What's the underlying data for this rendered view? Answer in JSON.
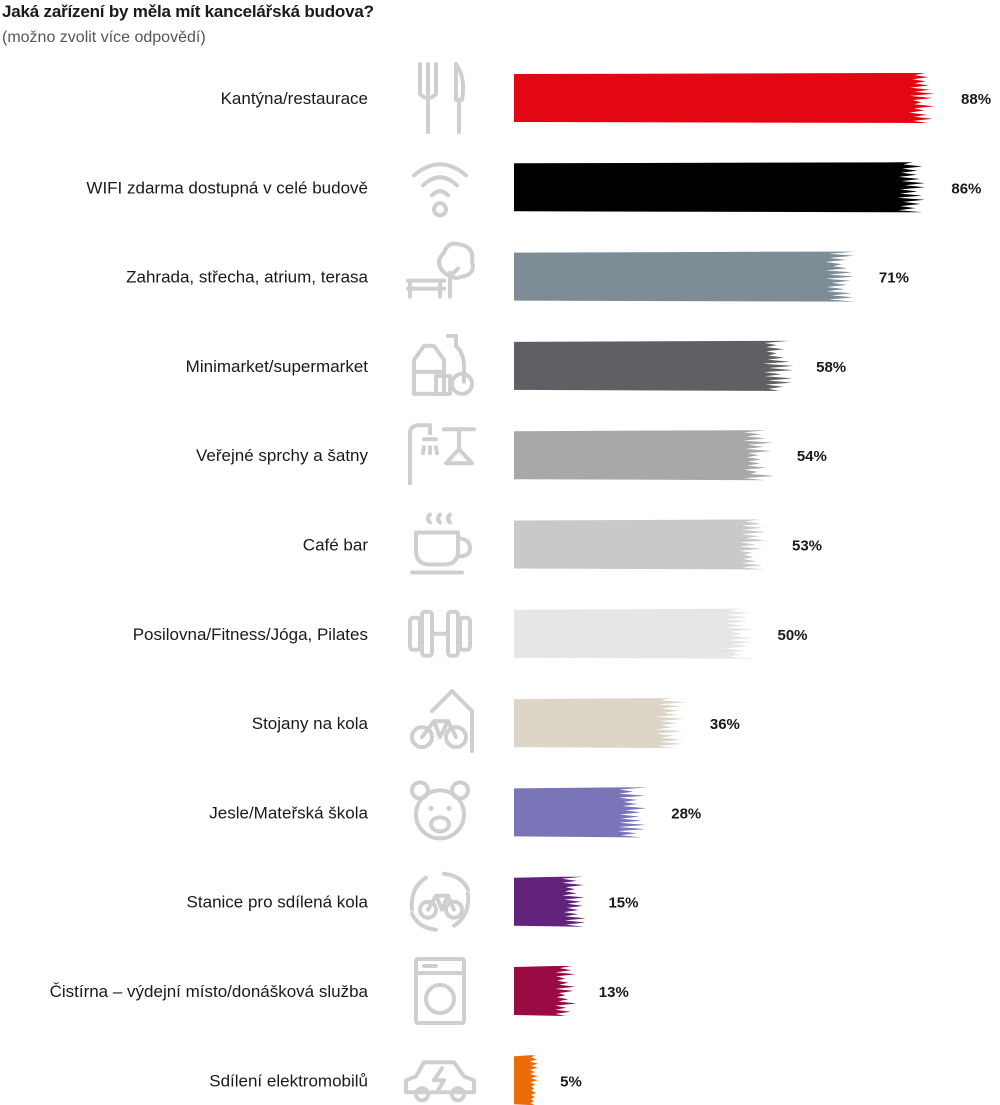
{
  "title": "Jaká zařízení by měla mít kancelářská budova?",
  "subtitle": "(možno zvolit více odpovědí)",
  "chart_data": {
    "type": "bar",
    "orientation": "horizontal",
    "title": "Jaká zařízení by měla mít kancelářská budova?",
    "subtitle": "(možno zvolit více odpovědí)",
    "value_suffix": "%",
    "xlim": [
      0,
      100
    ],
    "grid": false,
    "categories": [
      "Kantýna/restaurace",
      "WIFI zdarma dostupná v celé budově",
      "Zahrada, střecha, atrium, terasa",
      "Minimarket/supermarket",
      "Veřejné sprchy a šatny",
      "Café bar",
      "Posilovna/Fitness/Jóga, Pilates",
      "Stojany na kola",
      "Jesle/Mateřská škola",
      "Stanice pro sdílená kola",
      "Čistírna – výdejní místo/donášková služba",
      "Sdílení elektromobilů"
    ],
    "values": [
      88,
      86,
      71,
      58,
      54,
      53,
      50,
      36,
      28,
      15,
      13,
      5
    ],
    "value_labels": [
      "88%",
      "86%",
      "71%",
      "58%",
      "54%",
      "53%",
      "50%",
      "36%",
      "28%",
      "15%",
      "13%",
      "5%"
    ],
    "colors": [
      "#e30613",
      "#000000",
      "#7d8c95",
      "#5f6063",
      "#a7a8aa",
      "#c8c9cb",
      "#e6e6e7",
      "#ddd6c8",
      "#7a74b8",
      "#62237a",
      "#9a0a43",
      "#ec6c0c"
    ],
    "icons": [
      "cutlery-icon",
      "wifi-icon",
      "bench-tree-icon",
      "groceries-icon",
      "shower-hanger-icon",
      "coffee-cup-icon",
      "dumbbell-icon",
      "bike-rack-icon",
      "teddy-bear-icon",
      "shared-bike-icon",
      "washing-machine-icon",
      "electric-car-icon"
    ]
  }
}
